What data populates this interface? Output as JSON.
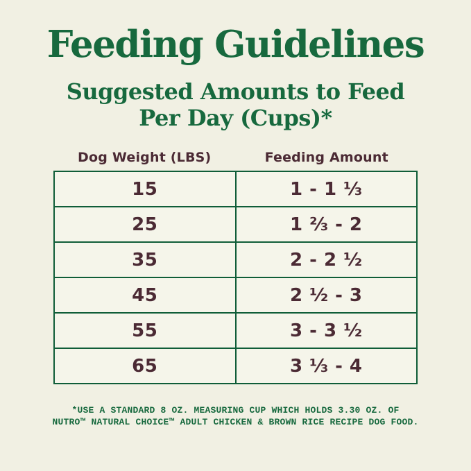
{
  "title": "Feeding Guidelines",
  "subtitle": {
    "line1": "Suggested Amounts to Feed",
    "line2": "Per Day (Cups)*"
  },
  "table": {
    "columns": [
      "Dog Weight (LBS)",
      "Feeding Amount"
    ],
    "rows": [
      {
        "weight": "15",
        "amount": "1 - 1 ⅓"
      },
      {
        "weight": "25",
        "amount": "1 ⅔ - 2"
      },
      {
        "weight": "35",
        "amount": "2 - 2 ½"
      },
      {
        "weight": "45",
        "amount": "2 ½ - 3"
      },
      {
        "weight": "55",
        "amount": "3 - 3 ½"
      },
      {
        "weight": "65",
        "amount": "3 ⅓ - 4"
      }
    ]
  },
  "footnote": {
    "line1": "*USE A STANDARD 8 OZ. MEASURING CUP WHICH HOLDS 3.30 OZ. OF",
    "line2": "NUTRO™ NATURAL CHOICE™ ADULT CHICKEN & BROWN RICE RECIPE DOG FOOD."
  },
  "colors": {
    "bg": "#f1f0e3",
    "cell-bg": "#f5f5ea",
    "green": "#17693e",
    "border-green": "#0f5d38",
    "maroon": "#4b2a34"
  }
}
